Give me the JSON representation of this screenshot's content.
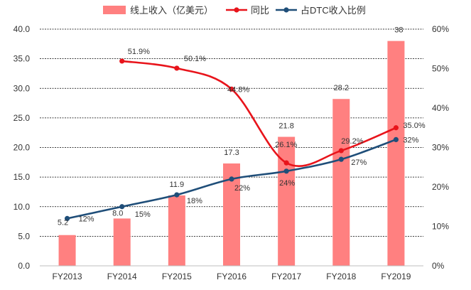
{
  "chart_data": {
    "type": "bar",
    "categories": [
      "FY2013",
      "FY2014",
      "FY2015",
      "FY2016",
      "FY2017",
      "FY2018",
      "FY2019"
    ],
    "bar_series": {
      "name": "线上收入（亿美元）",
      "values": [
        5.2,
        8.0,
        11.9,
        17.3,
        21.8,
        28.2,
        38
      ],
      "labels": [
        "5.2",
        "8.0",
        "11.9",
        "17.3",
        "21.8",
        "28.2",
        "38"
      ],
      "color": "#ff8080"
    },
    "growth_series": {
      "name": "同比",
      "values": [
        null,
        51.9,
        50.1,
        44.8,
        26.1,
        29.2,
        35.0
      ],
      "labels": [
        "",
        "51.9%",
        "50.1%",
        "44.8%",
        "26.1%",
        "29.2%",
        "35.0%"
      ],
      "color": "#e8141b"
    },
    "share_series": {
      "name": "占DTC收入比例",
      "values": [
        12,
        15,
        18,
        22,
        24,
        27,
        32
      ],
      "labels": [
        "12%",
        "15%",
        "18%",
        "22%",
        "24%",
        "27%",
        "32%"
      ],
      "color": "#1f4e79"
    },
    "y_left": {
      "min": 0,
      "max": 40,
      "ticks": [
        "0.0",
        "5.0",
        "10.0",
        "15.0",
        "20.0",
        "25.0",
        "30.0",
        "35.0",
        "40.0"
      ]
    },
    "y_right": {
      "min": 0,
      "max": 60,
      "ticks": [
        "0%",
        "10%",
        "20%",
        "30%",
        "40%",
        "50%",
        "60%"
      ]
    },
    "grid": true,
    "legend_position": "top"
  }
}
